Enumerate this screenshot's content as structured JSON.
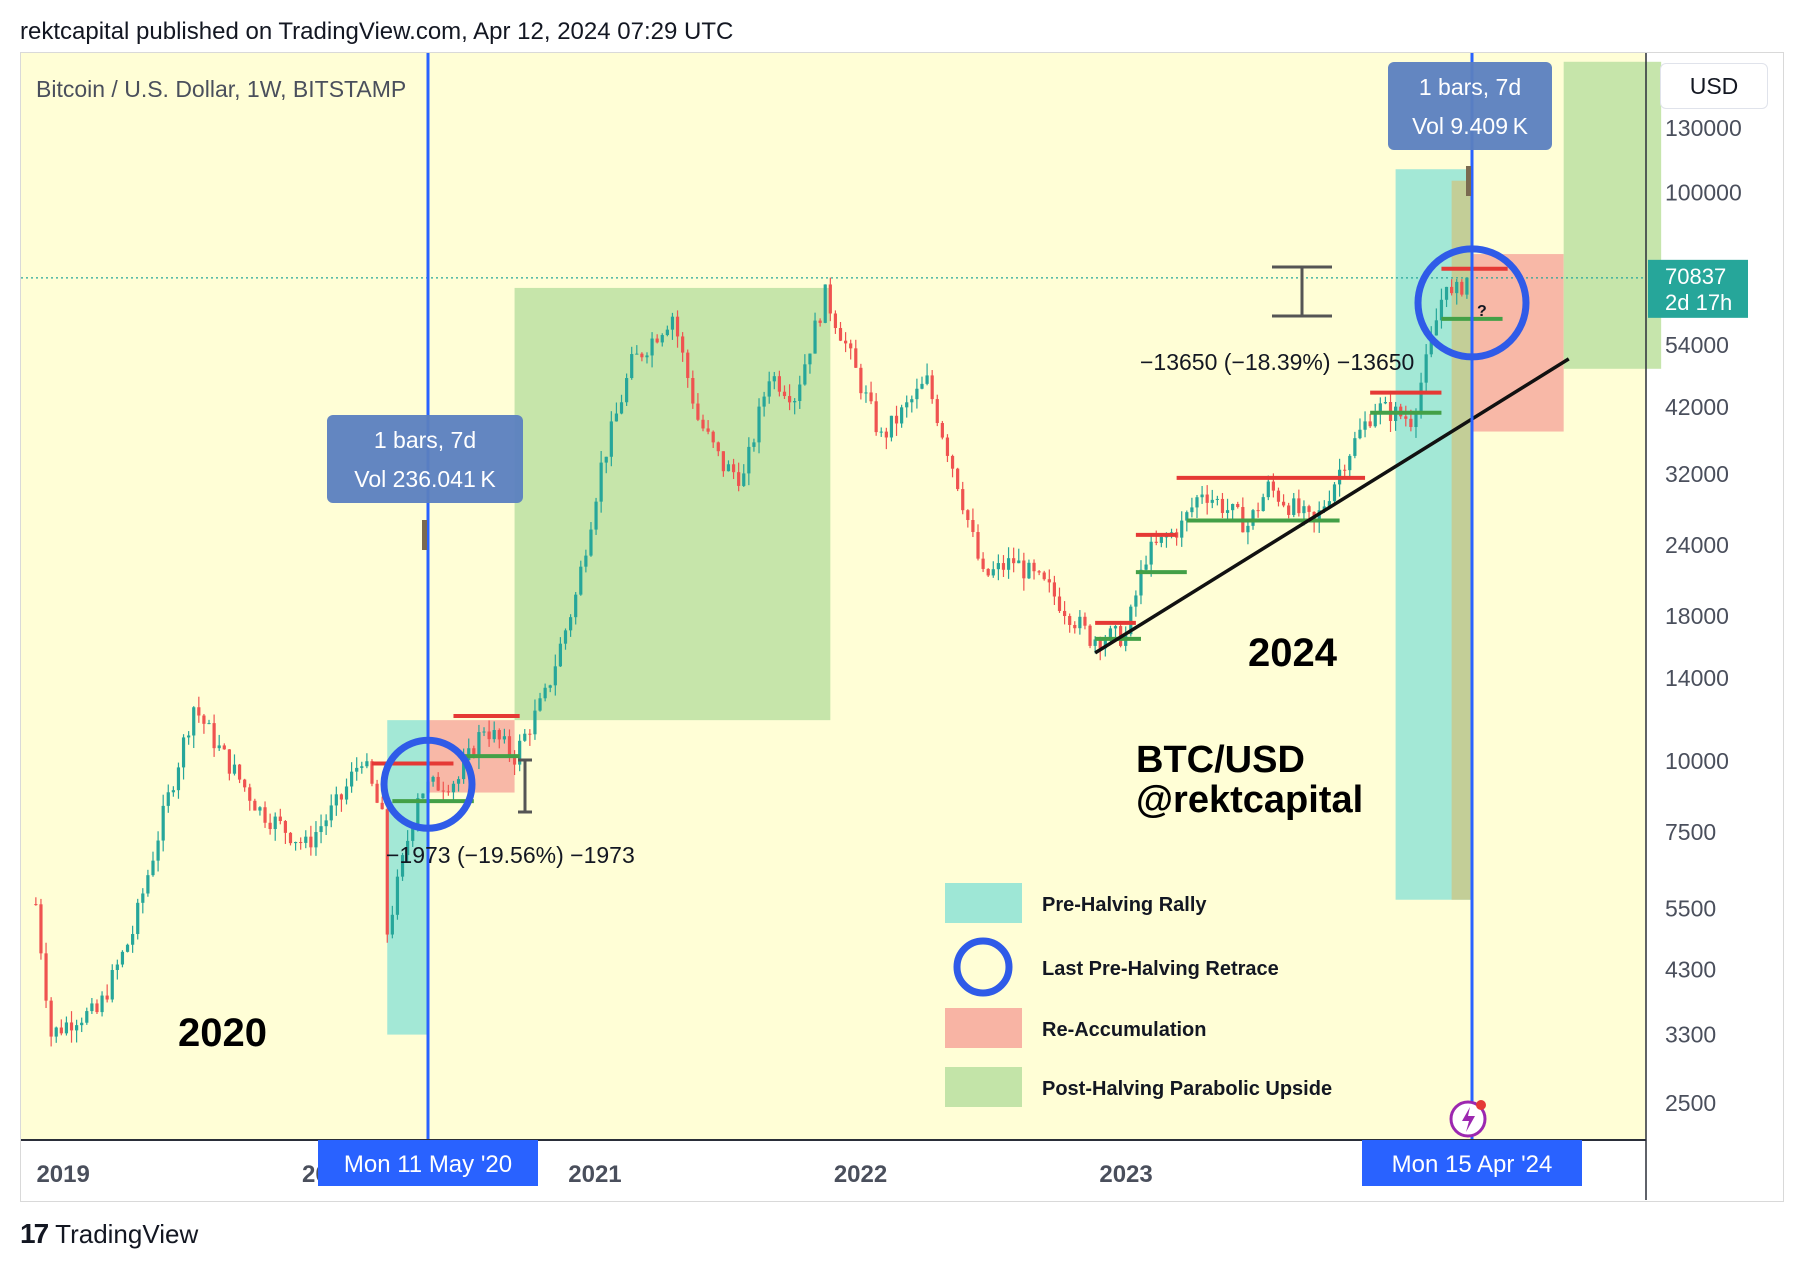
{
  "header": {
    "published": "rektcapital published on TradingView.com, Apr 12, 2024 07:29 UTC"
  },
  "footer": {
    "logo": "17",
    "brand": "TradingView"
  },
  "currency_button": "USD",
  "symbol_label": "Bitcoin / U.S. Dollar, 1W, BITSTAMP",
  "colors": {
    "background": "#fffed6",
    "up": "#26a69a",
    "down": "#ef5350",
    "cyan_zone": "#9ee7d6",
    "red_zone": "#f8b4a4",
    "green_zone": "#c3e4a8",
    "vline": "#2962ff",
    "circle": "#2f5be8",
    "res_line": "#e53935",
    "sup_line": "#43a047"
  },
  "annotations": {
    "year_2020": "2020",
    "year_2024": "2024",
    "pair": "BTC/USD",
    "handle": "@rektcapital",
    "measure_2020": "−1973 (−19.56%) −1973",
    "measure_2024": "−13650 (−18.39%) −13650",
    "question": "?",
    "tooltip_2020": {
      "line1": "1 bars, 7d",
      "line2": "Vol 236.041 K"
    },
    "tooltip_2024": {
      "line1": "1 bars, 7d",
      "line2": "Vol 9.409 K"
    },
    "date_2020": "Mon 11 May '20",
    "date_2024": "Mon 15 Apr '24"
  },
  "legend": [
    {
      "label": "Pre-Halving Rally",
      "kind": "cyan"
    },
    {
      "label": "Last Pre-Halving Retrace",
      "kind": "circle"
    },
    {
      "label": "Re-Accumulation",
      "kind": "red"
    },
    {
      "label": "Post-Halving Parabolic Upside",
      "kind": "green"
    }
  ],
  "chart_data": {
    "type": "candlestick",
    "title": "Bitcoin / U.S. Dollar, 1W, BITSTAMP",
    "x_axis": {
      "ticks": [
        "2019",
        "2020",
        "2021",
        "2022",
        "2023"
      ],
      "range": [
        "2018-11",
        "2025-03"
      ]
    },
    "y_axis": {
      "scale": "log",
      "ticks": [
        130000,
        100000,
        54000,
        42000,
        32000,
        24000,
        18000,
        14000,
        10000,
        7500,
        5500,
        4300,
        3300,
        2500
      ],
      "range": [
        2000,
        170000
      ]
    },
    "last_price": {
      "value": "70837",
      "countdown": "2d 17h"
    },
    "path_anchors": [
      [
        "2018-11-19",
        5600
      ],
      [
        "2018-12-10",
        3300
      ],
      [
        "2019-01-14",
        3550
      ],
      [
        "2019-02-11",
        3600
      ],
      [
        "2019-04-01",
        5000
      ],
      [
        "2019-05-13",
        8000
      ],
      [
        "2019-06-24",
        12500
      ],
      [
        "2019-07-29",
        10500
      ],
      [
        "2019-09-23",
        8200
      ],
      [
        "2019-11-25",
        7100
      ],
      [
        "2020-01-13",
        8600
      ],
      [
        "2020-02-10",
        10200
      ],
      [
        "2020-03-09",
        7900
      ],
      [
        "2020-03-16",
        5000
      ],
      [
        "2020-04-27",
        8800
      ],
      [
        "2020-05-11",
        9000
      ],
      [
        "2020-06-22",
        9300
      ],
      [
        "2020-07-27",
        11500
      ],
      [
        "2020-09-07",
        10200
      ],
      [
        "2020-10-19",
        13000
      ],
      [
        "2020-11-30",
        19500
      ],
      [
        "2021-01-04",
        33000
      ],
      [
        "2021-02-15",
        50000
      ],
      [
        "2021-04-12",
        61000
      ],
      [
        "2021-05-17",
        40000
      ],
      [
        "2021-06-21",
        33000
      ],
      [
        "2021-07-19",
        31500
      ],
      [
        "2021-08-23",
        48000
      ],
      [
        "2021-09-27",
        44000
      ],
      [
        "2021-11-08",
        66000
      ],
      [
        "2021-11-29",
        57000
      ],
      [
        "2022-01-24",
        37000
      ],
      [
        "2022-03-28",
        46500
      ],
      [
        "2022-05-09",
        31000
      ],
      [
        "2022-06-13",
        21000
      ],
      [
        "2022-07-25",
        22500
      ],
      [
        "2022-09-12",
        20000
      ],
      [
        "2022-11-07",
        16500
      ],
      [
        "2022-12-26",
        16600
      ],
      [
        "2023-01-23",
        23000
      ],
      [
        "2023-03-13",
        26000
      ],
      [
        "2023-04-10",
        30000
      ],
      [
        "2023-06-12",
        26000
      ],
      [
        "2023-07-10",
        30300
      ],
      [
        "2023-09-11",
        26000
      ],
      [
        "2023-10-23",
        34000
      ],
      [
        "2023-12-04",
        42000
      ],
      [
        "2024-01-22",
        40000
      ],
      [
        "2024-02-12",
        50000
      ],
      [
        "2024-03-11",
        71000
      ],
      [
        "2024-03-18",
        65000
      ],
      [
        "2024-04-08",
        70837
      ]
    ],
    "zones": [
      {
        "kind": "pre-halving-rally",
        "x": [
          "2020-03-16",
          "2020-05-11"
        ],
        "y": [
          3300,
          11800
        ]
      },
      {
        "kind": "re-accumulation",
        "x": [
          "2020-05-11",
          "2020-09-07"
        ],
        "y": [
          8800,
          11800
        ]
      },
      {
        "kind": "post-halving-parabolic-upside",
        "x": [
          "2020-09-07",
          "2021-11-15"
        ],
        "y": [
          11800,
          68000
        ]
      },
      {
        "kind": "pre-halving-rally",
        "x": [
          "2024-01-01",
          "2024-04-15"
        ],
        "y": [
          5700,
          110000
        ]
      },
      {
        "kind": "re-accumulation",
        "x": [
          "2024-04-15",
          "2024-08-19"
        ],
        "y": [
          38000,
          78000
        ]
      },
      {
        "kind": "post-halving-parabolic-upside",
        "x": [
          "2024-08-19",
          "2024-12-31"
        ],
        "y": [
          49000,
          170000
        ]
      }
    ],
    "halving_dates": [
      "2020-05-11",
      "2024-04-15"
    ],
    "trendline": [
      [
        "2022-11-14",
        15500
      ],
      [
        "2024-08-26",
        51000
      ]
    ],
    "resistance_levels": [
      {
        "x": [
          "2020-02-24",
          "2020-06-15"
        ],
        "y": 9900
      },
      {
        "x": [
          "2020-06-15",
          "2020-09-14"
        ],
        "y": 12000
      },
      {
        "x": [
          "2022-11-14",
          "2023-01-09"
        ],
        "y": 17500
      },
      {
        "x": [
          "2023-01-09",
          "2023-03-06"
        ],
        "y": 25000
      },
      {
        "x": [
          "2023-03-06",
          "2023-11-20"
        ],
        "y": 31500
      },
      {
        "x": [
          "2023-11-27",
          "2024-03-04"
        ],
        "y": 44500
      },
      {
        "x": [
          "2024-03-04",
          "2024-06-03"
        ],
        "y": 73500
      }
    ],
    "support_levels": [
      {
        "x": [
          "2020-03-23",
          "2020-07-13"
        ],
        "y": 8500
      },
      {
        "x": [
          "2020-06-22",
          "2020-09-14"
        ],
        "y": 10200
      },
      {
        "x": [
          "2022-11-14",
          "2023-01-16"
        ],
        "y": 16400
      },
      {
        "x": [
          "2023-01-09",
          "2023-03-20"
        ],
        "y": 21500
      },
      {
        "x": [
          "2023-03-20",
          "2023-10-16"
        ],
        "y": 26500
      },
      {
        "x": [
          "2023-11-27",
          "2024-03-04"
        ],
        "y": 41000
      },
      {
        "x": [
          "2024-03-04",
          "2024-05-27"
        ],
        "y": 60000
      }
    ],
    "retrace_circles": [
      {
        "date": "2020-05-11",
        "price": 9100
      },
      {
        "date": "2024-04-15",
        "price": 64000
      }
    ]
  }
}
